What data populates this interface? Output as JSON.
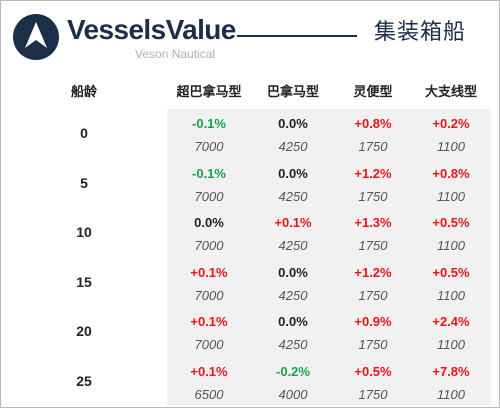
{
  "header": {
    "brand": "VesselsValue",
    "brand_sub": "Veson Nautical",
    "title": "集装箱船"
  },
  "colors": {
    "brand_navy": "#1d2e4a",
    "positive": "#e8151b",
    "negative": "#1aa24a",
    "neutral": "#222222",
    "shade": "#f1f1f1"
  },
  "table": {
    "age_header": "船龄",
    "columns": [
      "超巴拿马型",
      "巴拿马型",
      "灵便型",
      "大支线型"
    ],
    "rows": [
      {
        "age": "0",
        "changes": [
          "-0.1%",
          "0.0%",
          "+0.8%",
          "+0.2%"
        ],
        "teu": [
          "7000",
          "4250",
          "1750",
          "1100"
        ]
      },
      {
        "age": "5",
        "changes": [
          "-0.1%",
          "0.0%",
          "+1.2%",
          "+0.8%"
        ],
        "teu": [
          "7000",
          "4250",
          "1750",
          "1100"
        ]
      },
      {
        "age": "10",
        "changes": [
          "0.0%",
          "+0.1%",
          "+1.3%",
          "+0.5%"
        ],
        "teu": [
          "7000",
          "4250",
          "1750",
          "1100"
        ]
      },
      {
        "age": "15",
        "changes": [
          "+0.1%",
          "0.0%",
          "+1.2%",
          "+0.5%"
        ],
        "teu": [
          "7000",
          "4250",
          "1750",
          "1100"
        ]
      },
      {
        "age": "20",
        "changes": [
          "+0.1%",
          "0.0%",
          "+0.9%",
          "+2.4%"
        ],
        "teu": [
          "7000",
          "4250",
          "1750",
          "1100"
        ]
      },
      {
        "age": "25",
        "changes": [
          "+0.1%",
          "-0.2%",
          "+0.5%",
          "+7.8%"
        ],
        "teu": [
          "6500",
          "4000",
          "1750",
          "1100"
        ]
      }
    ]
  },
  "chart_data": {
    "type": "table",
    "row_header": "船龄",
    "columns": [
      "超巴拿马型",
      "巴拿马型",
      "灵便型",
      "大支线型"
    ],
    "rows": [
      {
        "age": 0,
        "change_pct": [
          -0.1,
          0.0,
          0.8,
          0.2
        ],
        "teu": [
          7000,
          4250,
          1750,
          1100
        ]
      },
      {
        "age": 5,
        "change_pct": [
          -0.1,
          0.0,
          1.2,
          0.8
        ],
        "teu": [
          7000,
          4250,
          1750,
          1100
        ]
      },
      {
        "age": 10,
        "change_pct": [
          0.0,
          0.1,
          1.3,
          0.5
        ],
        "teu": [
          7000,
          4250,
          1750,
          1100
        ]
      },
      {
        "age": 15,
        "change_pct": [
          0.1,
          0.0,
          1.2,
          0.5
        ],
        "teu": [
          7000,
          4250,
          1750,
          1100
        ]
      },
      {
        "age": 20,
        "change_pct": [
          0.1,
          0.0,
          0.9,
          2.4
        ],
        "teu": [
          7000,
          4250,
          1750,
          1100
        ]
      },
      {
        "age": 25,
        "change_pct": [
          0.1,
          -0.2,
          0.5,
          7.8
        ],
        "teu": [
          6500,
          4000,
          1750,
          1100
        ]
      }
    ]
  }
}
